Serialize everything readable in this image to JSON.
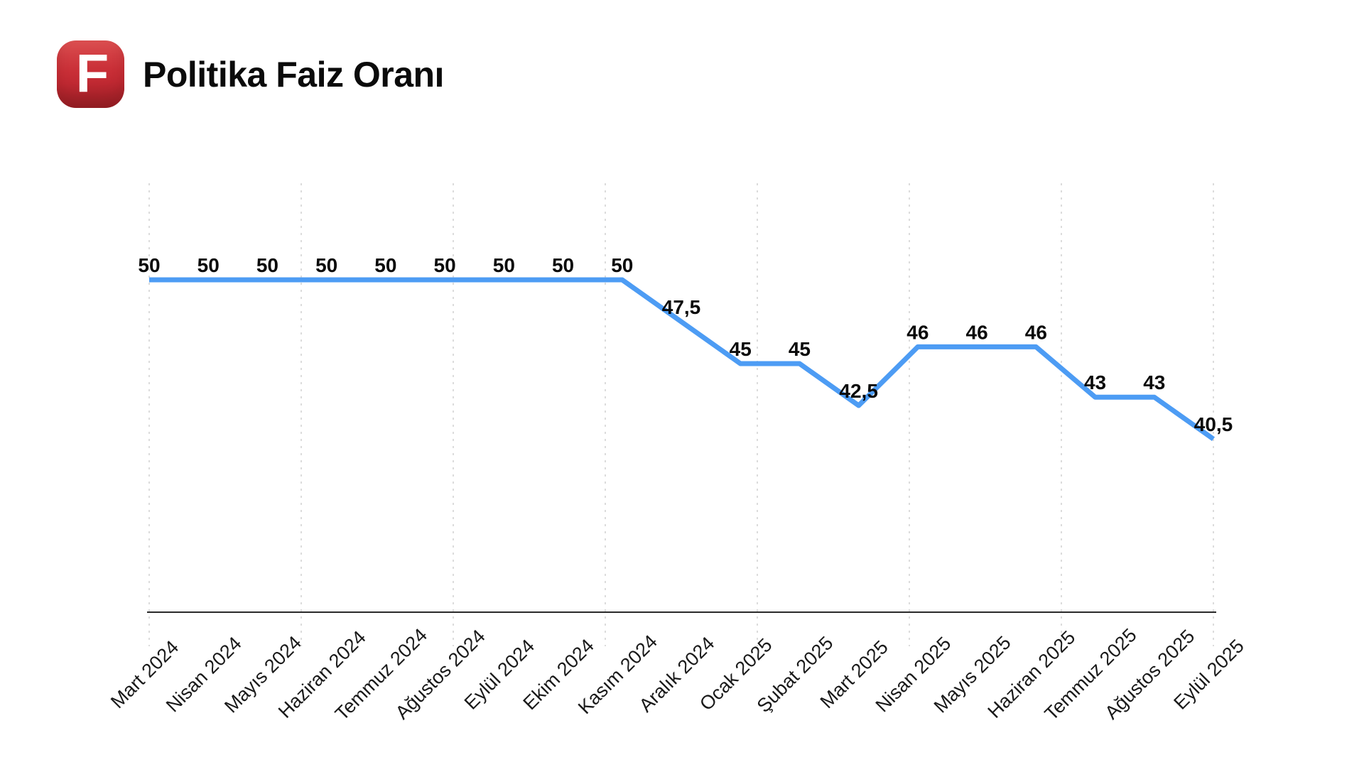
{
  "header": {
    "logo_letter": "F",
    "title": "Politika Faiz Oranı"
  },
  "chart_data": {
    "type": "line",
    "title": "Politika Faiz Oranı",
    "categories": [
      "Mart 2024",
      "Nisan 2024",
      "Mayıs 2024",
      "Haziran 2024",
      "Temmuz 2024",
      "Ağustos 2024",
      "Eylül 2024",
      "Ekim 2024",
      "Kasım 2024",
      "Aralık 2024",
      "Ocak 2025",
      "Şubat 2025",
      "Mart 2025",
      "Nisan 2025",
      "Mayıs 2025",
      "Haziran 2025",
      "Temmuz 2025",
      "Ağustos 2025",
      "Eylül 2025"
    ],
    "series": [
      {
        "name": "Politika Faiz Oranı",
        "values": [
          50,
          50,
          50,
          50,
          50,
          50,
          50,
          50,
          50,
          47.5,
          45,
          45,
          42.5,
          46,
          46,
          46,
          43,
          43,
          40.5
        ]
      }
    ],
    "value_labels": [
      "50",
      "50",
      "50",
      "50",
      "50",
      "50",
      "50",
      "50",
      "50",
      "47,5",
      "45",
      "45",
      "42,5",
      "46",
      "46",
      "46",
      "43",
      "43",
      "40,5"
    ],
    "decimal_separator": ",",
    "xlabel": "",
    "ylabel": "",
    "y_axis_visible": false,
    "approx_value_range": [
      40.5,
      50
    ],
    "grid": "vertical-dashed",
    "gridline_count": 8,
    "legend": "none",
    "colors": {
      "line": "#4d9cf4",
      "value_label": "#0a0a0a",
      "tick_label": "#191919",
      "gridline": "#dcdcdc",
      "axis": "#2a2a2a",
      "background": "#ffffff",
      "logo_background": "#c62b33",
      "logo_letter": "#ffffff"
    }
  }
}
